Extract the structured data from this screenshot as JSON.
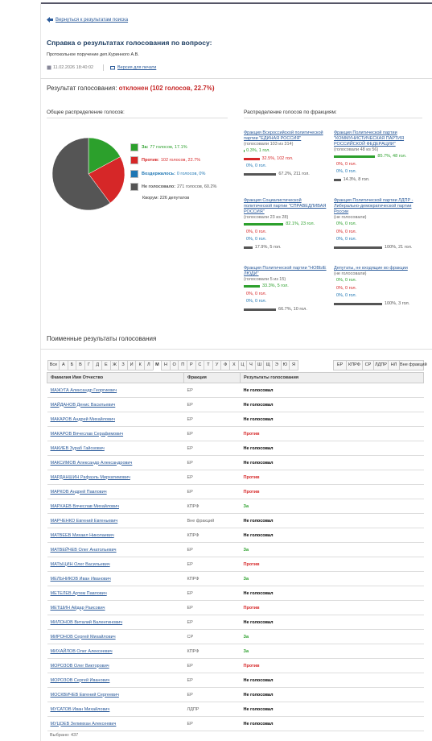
{
  "nav": {
    "back": "Вернуться к результатам поиска"
  },
  "header": {
    "title": "Справка о результатах голосования по вопросу:",
    "subtitle": "Протокольное поручение деп.Куринного А.В.",
    "date": "11.02.2026 18:40:02",
    "print": "Версия для печати"
  },
  "result": {
    "label": "Результат голосования:",
    "value": "отклонен (102 голосов, 22.7%)"
  },
  "overall": {
    "title": "Общее распределение голосов:",
    "items": [
      {
        "name": "За:",
        "label": "77 голосов, 17.1%",
        "votes": 77,
        "color": "#2ca02c"
      },
      {
        "name": "Против:",
        "label": "102 голосов, 22.7%",
        "votes": 102,
        "color": "#d62728"
      },
      {
        "name": "Воздержалось:",
        "label": "0 голосов, 0%",
        "votes": 0,
        "color": "#1f77b4"
      },
      {
        "name": "Не голосовало:",
        "label": "271 голосов, 60.2%",
        "votes": 271,
        "color": "#555555"
      }
    ],
    "quorum": "Кворум: 226 депутатов"
  },
  "factions": {
    "title": "Распределение голосов по фракциям:",
    "bar_colors": [
      "#2ca02c",
      "#d62728",
      "#1f77b4",
      "#555555"
    ],
    "groups": [
      {
        "name": "Фракция Всероссийской политической партии \"ЕДИНАЯ РОССИЯ\"",
        "note": "(голосовали 103 из 314)",
        "bars": [
          {
            "label": "0.3%, 1 гол.",
            "percent": 0.3
          },
          {
            "label": "32.5%, 102 гол.",
            "percent": 32.5
          },
          {
            "label": "0%, 0 гол.",
            "percent": 0
          },
          {
            "label": "67.2%, 211 гол.",
            "percent": 67.2
          }
        ]
      },
      {
        "name": "Фракция Политической партии \"КОММУНИСТИЧЕСКАЯ ПАРТИЯ РОССИЙСКОЙ ФЕДЕРАЦИИ\"",
        "note": "(голосовали 48 из 56)",
        "bars": [
          {
            "label": "85.7%, 48 гол.",
            "percent": 85.7
          },
          {
            "label": "0%, 0 гол.",
            "percent": 0
          },
          {
            "label": "0%, 0 гол.",
            "percent": 0
          },
          {
            "label": "14.3%, 8 гол.",
            "percent": 14.3
          }
        ]
      },
      {
        "name": "Фракция Социалистической политической партии \"СПРАВЕДЛИВАЯ РОССИЯ\"",
        "note": "(голосовали 23 из 28)",
        "bars": [
          {
            "label": "82.1%, 23 гол.",
            "percent": 82.1
          },
          {
            "label": "0%, 0 гол.",
            "percent": 0
          },
          {
            "label": "0%, 0 гол.",
            "percent": 0
          },
          {
            "label": "17.9%, 5 гол.",
            "percent": 17.9
          }
        ]
      },
      {
        "name": "Фракция Политической партии ЛДПР - Либерально-демократической партии России",
        "note": "(не голосовали)",
        "bars": [
          {
            "label": "0%, 0 гол.",
            "percent": 0
          },
          {
            "label": "0%, 0 гол.",
            "percent": 0
          },
          {
            "label": "0%, 0 гол.",
            "percent": 0
          },
          {
            "label": "100%, 21 гол.",
            "percent": 100
          }
        ]
      },
      {
        "name": "Фракция Политической партии \"НОВЫЕ ЛЮДИ\"",
        "note": "(голосовали 5 из 15)",
        "bars": [
          {
            "label": "33.3%, 5 гол.",
            "percent": 33.3
          },
          {
            "label": "0%, 0 гол.",
            "percent": 0
          },
          {
            "label": "0%, 0 гол.",
            "percent": 0
          },
          {
            "label": "66.7%, 10 гол.",
            "percent": 66.7
          }
        ]
      },
      {
        "name": "Депутаты, не входящие во фракции",
        "note": "(не голосовали)",
        "bars": [
          {
            "label": "0%, 0 гол.",
            "percent": 0
          },
          {
            "label": "0%, 0 гол.",
            "percent": 0
          },
          {
            "label": "0%, 0 гол.",
            "percent": 0
          },
          {
            "label": "100%, 3 гол.",
            "percent": 100
          }
        ]
      }
    ]
  },
  "roll_call": {
    "title": "Поименные результаты голосования",
    "letters": [
      "Все",
      "А",
      "Б",
      "В",
      "Г",
      "Д",
      "Е",
      "Ж",
      "З",
      "И",
      "К",
      "Л",
      "М",
      "Н",
      "О",
      "П",
      "Р",
      "С",
      "Т",
      "У",
      "Ф",
      "Х",
      "Ц",
      "Ч",
      "Ш",
      "Щ",
      "Э",
      "Ю",
      "Я"
    ],
    "selected": 12,
    "faction_filters": [
      "ЕР",
      "КПРФ",
      "СР",
      "ЛДПР",
      "НЛ",
      "Вне фракций"
    ],
    "columns": [
      "Фамилия Имя Отчество",
      "Фракция",
      "Результаты голосования"
    ],
    "result_colors": {
      "Не голосовал": "#000000",
      "Против": "#d62728",
      "За": "#2ca02c"
    },
    "rows": [
      [
        "МАЖУГА Александр Георгиевич",
        "ЕР",
        "Не голосовал"
      ],
      [
        "МАЙДАНОВ Денис Васильевич",
        "ЕР",
        "Не голосовал"
      ],
      [
        "МАКАРОВ Андрей Михайлович",
        "ЕР",
        "Не голосовал"
      ],
      [
        "МАКАРОВ Вячеслав Серафимович",
        "ЕР",
        "Против"
      ],
      [
        "МАКИЕВ Зураб Гайозович",
        "ЕР",
        "Не голосовал"
      ],
      [
        "МАКСИМОВ Александр Александрович",
        "ЕР",
        "Не голосовал"
      ],
      [
        "МАРДАНШИН Рафаэль Мирхатимович",
        "ЕР",
        "Против"
      ],
      [
        "МАРКОВ Андрей Павлович",
        "ЕР",
        "Против"
      ],
      [
        "МАРХАЕВ Вячеслав Михайлович",
        "КПРФ",
        "За"
      ],
      [
        "МАРЧЕНКО Евгений Евгеньевич",
        "Вне фракций",
        "Не голосовал"
      ],
      [
        "МАТВЕЕВ Михаил Николаевич",
        "КПРФ",
        "Не голосовал"
      ],
      [
        "МАТВЕЙЧЕВ Олег Анатольевич",
        "ЕР",
        "За"
      ],
      [
        "МАТЫЦИН Олег Васильевич",
        "ЕР",
        "Против"
      ],
      [
        "МЕЛЬНИКОВ Иван Иванович",
        "КПРФ",
        "За"
      ],
      [
        "МЕТЕЛЕВ Артем Павлович",
        "ЕР",
        "Не голосовал"
      ],
      [
        "МЕТШИН Айдар Раисович",
        "ЕР",
        "Против"
      ],
      [
        "МИЛОНОВ Виталий Валентинович",
        "ЕР",
        "Не голосовал"
      ],
      [
        "МИРОНОВ Сергей Михайлович",
        "СР",
        "За"
      ],
      [
        "МИХАЙЛОВ Олег Алексеевич",
        "КПРФ",
        "За"
      ],
      [
        "МОРОЗОВ Олег Викторович",
        "ЕР",
        "Против"
      ],
      [
        "МОРОЗОВ Сергей Иванович",
        "ЕР",
        "Не голосовал"
      ],
      [
        "МОСКВИЧЕВ Евгений Сергеевич",
        "ЕР",
        "Не голосовал"
      ],
      [
        "МУСАТОВ Иван Михайлович",
        "ЛДПР",
        "Не голосовал"
      ],
      [
        "МУЦОЕВ Зелимхан Алексеевич",
        "ЕР",
        "Не голосовал"
      ]
    ],
    "footer": "Выбрано: 437"
  }
}
